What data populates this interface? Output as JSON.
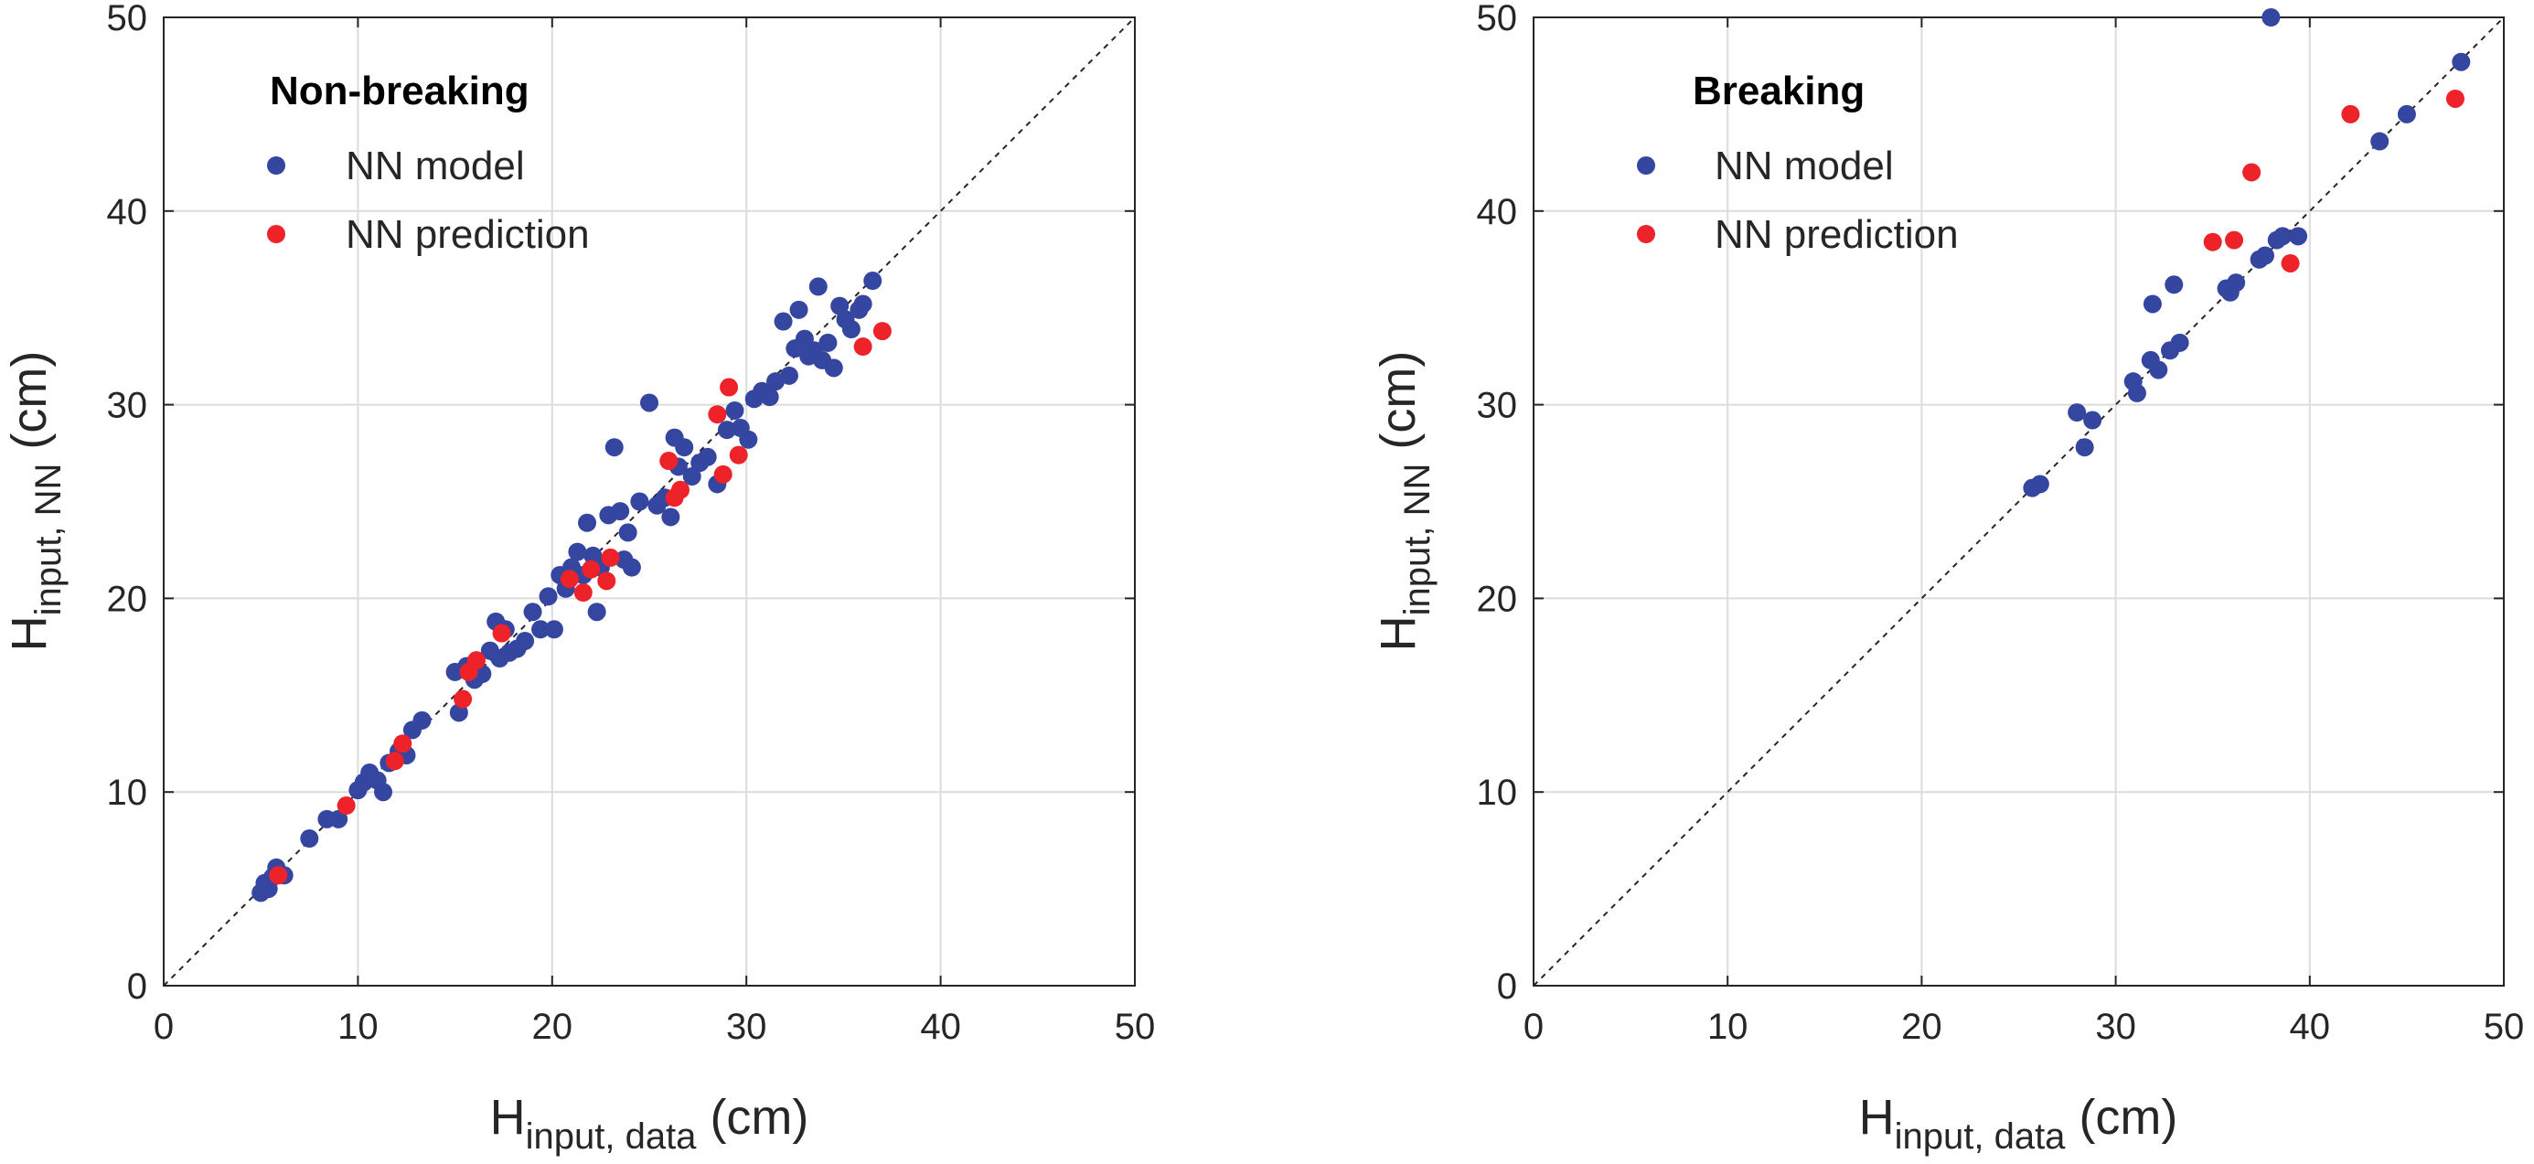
{
  "colors": {
    "model": "#3446a0",
    "prediction": "#ee2229",
    "grid": "#dcdcdc",
    "axis": "#262626"
  },
  "chart_data": [
    {
      "type": "scatter",
      "panel": "left",
      "legend_title": "Non-breaking",
      "xlabel": {
        "main": "H",
        "sub": "input, data",
        "unit": " (cm)"
      },
      "ylabel": {
        "main": "H",
        "sub": "input, NN",
        "unit": " (cm)"
      },
      "xlim": [
        0,
        50
      ],
      "ylim": [
        0,
        50
      ],
      "xticks": [
        "0",
        "10",
        "20",
        "30",
        "40",
        "50"
      ],
      "yticks": [
        "0",
        "10",
        "20",
        "30",
        "40",
        "50"
      ],
      "grid": true,
      "identity_line": true,
      "series": [
        {
          "name": "NN model",
          "color_key": "model",
          "points": [
            [
              5.0,
              4.8
            ],
            [
              5.2,
              5.3
            ],
            [
              5.4,
              5.0
            ],
            [
              5.6,
              5.6
            ],
            [
              5.8,
              6.1
            ],
            [
              6.2,
              5.7
            ],
            [
              7.5,
              7.6
            ],
            [
              8.4,
              8.6
            ],
            [
              9.0,
              8.6
            ],
            [
              10.0,
              10.1
            ],
            [
              10.3,
              10.5
            ],
            [
              10.6,
              11.0
            ],
            [
              11.0,
              10.6
            ],
            [
              11.3,
              10.0
            ],
            [
              11.6,
              11.5
            ],
            [
              12.1,
              12.1
            ],
            [
              12.5,
              11.9
            ],
            [
              12.8,
              13.2
            ],
            [
              13.3,
              13.7
            ],
            [
              15.0,
              16.2
            ],
            [
              15.2,
              14.1
            ],
            [
              15.6,
              16.5
            ],
            [
              16.0,
              15.8
            ],
            [
              16.4,
              16.1
            ],
            [
              16.8,
              17.3
            ],
            [
              17.1,
              18.8
            ],
            [
              17.3,
              16.9
            ],
            [
              17.6,
              18.4
            ],
            [
              17.8,
              17.2
            ],
            [
              18.2,
              17.4
            ],
            [
              18.6,
              17.8
            ],
            [
              19.0,
              19.3
            ],
            [
              19.4,
              18.4
            ],
            [
              19.8,
              20.1
            ],
            [
              20.1,
              18.4
            ],
            [
              20.4,
              21.2
            ],
            [
              20.7,
              20.5
            ],
            [
              21.0,
              21.6
            ],
            [
              21.3,
              22.4
            ],
            [
              21.6,
              21.2
            ],
            [
              21.8,
              23.9
            ],
            [
              22.1,
              22.2
            ],
            [
              22.3,
              19.3
            ],
            [
              22.5,
              21.6
            ],
            [
              22.9,
              24.3
            ],
            [
              23.2,
              27.8
            ],
            [
              23.5,
              24.5
            ],
            [
              23.7,
              22.0
            ],
            [
              23.9,
              23.4
            ],
            [
              24.1,
              21.6
            ],
            [
              24.5,
              25.0
            ],
            [
              25.0,
              30.1
            ],
            [
              25.4,
              24.8
            ],
            [
              25.8,
              25.2
            ],
            [
              26.1,
              24.2
            ],
            [
              26.3,
              28.3
            ],
            [
              26.5,
              26.8
            ],
            [
              26.8,
              27.8
            ],
            [
              27.2,
              26.3
            ],
            [
              27.6,
              27.0
            ],
            [
              28.0,
              27.3
            ],
            [
              28.5,
              25.9
            ],
            [
              29.0,
              28.7
            ],
            [
              29.4,
              29.7
            ],
            [
              29.7,
              28.8
            ],
            [
              30.1,
              28.2
            ],
            [
              30.4,
              30.3
            ],
            [
              30.8,
              30.7
            ],
            [
              31.2,
              30.4
            ],
            [
              31.5,
              31.2
            ],
            [
              31.9,
              34.3
            ],
            [
              32.2,
              31.5
            ],
            [
              32.5,
              32.9
            ],
            [
              32.7,
              34.9
            ],
            [
              33.0,
              33.4
            ],
            [
              33.2,
              32.5
            ],
            [
              33.5,
              32.8
            ],
            [
              33.7,
              36.1
            ],
            [
              33.9,
              32.3
            ],
            [
              34.2,
              33.2
            ],
            [
              34.5,
              31.9
            ],
            [
              34.8,
              35.1
            ],
            [
              35.1,
              34.4
            ],
            [
              35.4,
              33.9
            ],
            [
              35.8,
              34.9
            ],
            [
              36.0,
              35.2
            ],
            [
              36.5,
              36.4
            ]
          ]
        },
        {
          "name": "NN prediction",
          "color_key": "prediction",
          "points": [
            [
              5.9,
              5.7
            ],
            [
              9.4,
              9.3
            ],
            [
              11.9,
              11.6
            ],
            [
              12.3,
              12.5
            ],
            [
              15.4,
              14.8
            ],
            [
              15.7,
              16.2
            ],
            [
              16.1,
              16.8
            ],
            [
              17.4,
              18.2
            ],
            [
              20.9,
              21.0
            ],
            [
              21.6,
              20.3
            ],
            [
              22.0,
              21.5
            ],
            [
              22.8,
              20.9
            ],
            [
              23.0,
              22.1
            ],
            [
              26.0,
              27.1
            ],
            [
              26.3,
              25.2
            ],
            [
              26.6,
              25.6
            ],
            [
              28.5,
              29.5
            ],
            [
              28.8,
              26.4
            ],
            [
              29.1,
              30.9
            ],
            [
              29.6,
              27.4
            ],
            [
              36.0,
              33.0
            ],
            [
              37.0,
              33.8
            ]
          ]
        }
      ]
    },
    {
      "type": "scatter",
      "panel": "right",
      "legend_title": "Breaking",
      "xlabel": {
        "main": "H",
        "sub": "input, data",
        "unit": " (cm)"
      },
      "ylabel": {
        "main": "H",
        "sub": "input, NN",
        "unit": " (cm)"
      },
      "xlim": [
        0,
        50
      ],
      "ylim": [
        0,
        50
      ],
      "xticks": [
        "0",
        "10",
        "20",
        "30",
        "40",
        "50"
      ],
      "yticks": [
        "0",
        "10",
        "20",
        "30",
        "40",
        "50"
      ],
      "grid": true,
      "identity_line": true,
      "series": [
        {
          "name": "NN model",
          "color_key": "model",
          "points": [
            [
              25.7,
              25.7
            ],
            [
              26.1,
              25.9
            ],
            [
              28.0,
              29.6
            ],
            [
              28.4,
              27.8
            ],
            [
              28.8,
              29.2
            ],
            [
              30.9,
              31.2
            ],
            [
              31.1,
              30.6
            ],
            [
              31.8,
              32.3
            ],
            [
              31.9,
              35.2
            ],
            [
              32.2,
              31.8
            ],
            [
              32.8,
              32.8
            ],
            [
              33.0,
              36.2
            ],
            [
              33.3,
              33.2
            ],
            [
              35.7,
              36.0
            ],
            [
              35.9,
              35.8
            ],
            [
              36.2,
              36.3
            ],
            [
              37.4,
              37.5
            ],
            [
              37.7,
              37.7
            ],
            [
              38.0,
              50.0
            ],
            [
              38.3,
              38.5
            ],
            [
              38.6,
              38.7
            ],
            [
              39.4,
              38.7
            ],
            [
              43.6,
              43.6
            ],
            [
              45.0,
              45.0
            ],
            [
              47.8,
              47.7
            ]
          ]
        },
        {
          "name": "NN prediction",
          "color_key": "prediction",
          "points": [
            [
              35.0,
              38.4
            ],
            [
              36.1,
              38.5
            ],
            [
              37.0,
              42.0
            ],
            [
              39.0,
              37.3
            ],
            [
              42.1,
              45.0
            ],
            [
              47.5,
              45.8
            ]
          ]
        }
      ]
    }
  ]
}
